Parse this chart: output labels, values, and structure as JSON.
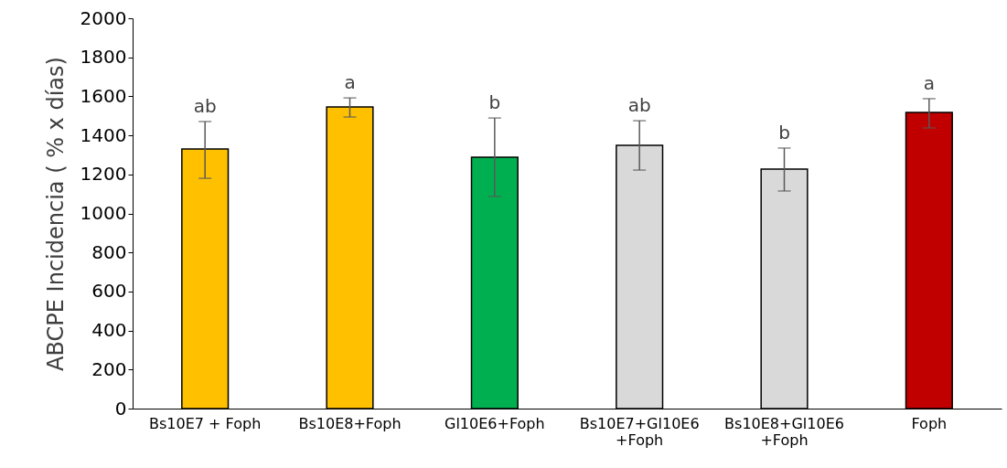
{
  "chart_data": {
    "type": "bar",
    "ylabel": "ABCPE Incidencia ( % x días)",
    "categories": [
      "Bs10E7 + Foph",
      "Bs10E8+Foph",
      "Gl10E6+Foph",
      "Bs10E7+Gl10E6\n+Foph",
      "Bs10E8+Gl10E6\n+Foph",
      "Foph"
    ],
    "values": [
      1330,
      1546,
      1288,
      1349,
      1227,
      1518
    ],
    "colors": [
      "#ffc000",
      "#ffc000",
      "#00b050",
      "#d9d9d9",
      "#d9d9d9",
      "#c00000"
    ],
    "errors": [
      [
        1180,
        1471
      ],
      [
        1494,
        1592
      ],
      [
        1087,
        1489
      ],
      [
        1222,
        1475
      ],
      [
        1115,
        1335
      ],
      [
        1438,
        1588
      ]
    ],
    "ylim": [
      0,
      2000
    ],
    "yticks": [
      0,
      200,
      400,
      600,
      800,
      1000,
      1200,
      1400,
      1600,
      1800,
      2000
    ],
    "grid": false,
    "annotations": [
      "ab",
      "a",
      "b",
      "ab",
      "b",
      "a"
    ]
  }
}
